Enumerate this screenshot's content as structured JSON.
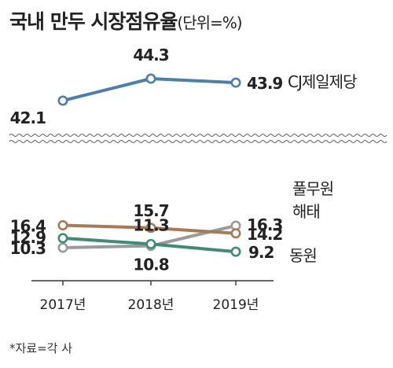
{
  "title": "국내 만두 시장점유율",
  "unit": "(단위=%)",
  "source": "*자료=각 사",
  "chart_data": {
    "type": "line",
    "title": "국내 만두 시장점유율",
    "ylabel": "%",
    "categories": [
      "2017년",
      "2018년",
      "2019년"
    ],
    "axis_break": true,
    "grid": false,
    "legend": "series names labeled at line ends (right)",
    "series": [
      {
        "name": "CJ제일제당",
        "values": [
          42.1,
          44.3,
          43.9
        ],
        "color": "#4a7fb0",
        "labels": [
          "42.1",
          "44.3",
          "43.9"
        ]
      },
      {
        "name": "풀무원",
        "values": [
          10.3,
          10.8,
          16.3
        ],
        "color": "#9a9a9a",
        "labels": [
          "10.3",
          "10.8",
          "16.3"
        ]
      },
      {
        "name": "해태",
        "values": [
          16.4,
          15.7,
          14.2
        ],
        "color": "#a77a55",
        "labels": [
          "16.4",
          "15.7",
          "14.2"
        ]
      },
      {
        "name": "동원",
        "values": [
          12.9,
          11.3,
          9.2
        ],
        "color": "#3f8b73",
        "labels": [
          "12.9",
          "11.3",
          "9.2"
        ]
      }
    ]
  }
}
